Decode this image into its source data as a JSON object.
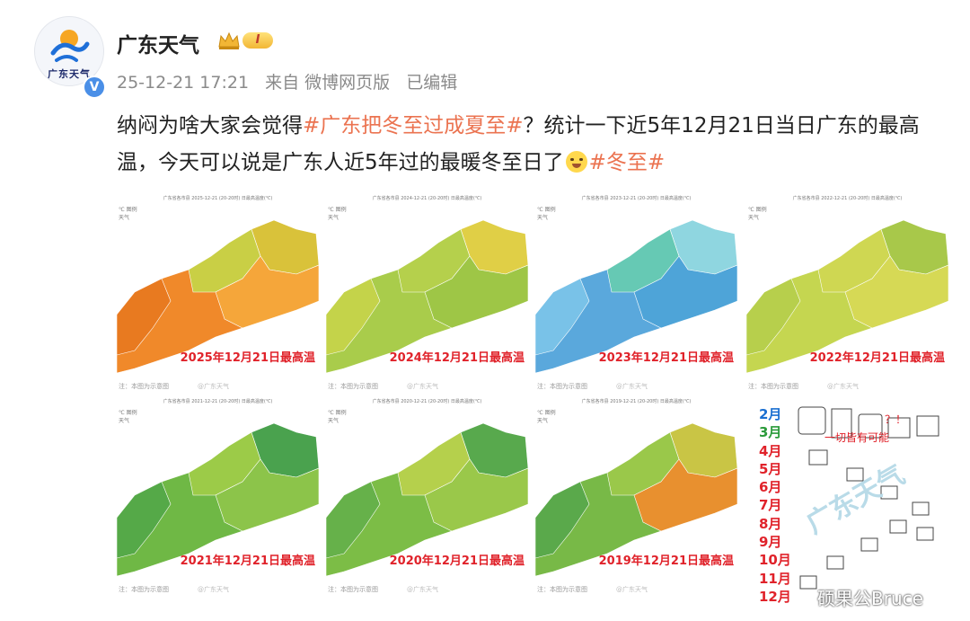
{
  "account": {
    "avatar_text": "广东天气",
    "name": "广东天气",
    "vip_level": "I",
    "verified_mark": "V"
  },
  "post_meta": {
    "timestamp": "25-12-21 17:21",
    "source": "来自 微博网页版",
    "edited": "已编辑"
  },
  "post": {
    "text1": "纳闷为啥大家会觉得",
    "tag1": "#广东把冬至过成夏至#",
    "text2": "？统计一下近5年12月21日当日广东的最高温，今天可以说是广东人近5年过的最暖冬至日了",
    "tag2": "#冬至#"
  },
  "maps": [
    {
      "title": "广东省各市县 2025-12-21 (20-20时) 日最高温度(℃)",
      "caption": "2025年12月21日最高温",
      "colors": [
        "#f0892a",
        "#e87a20",
        "#f5a63a",
        "#d9c23a",
        "#c9cf45"
      ]
    },
    {
      "title": "广东省各市县 2024-12-21 (20-20时) 日最高温度(℃)",
      "caption": "2024年12月21日最高温",
      "colors": [
        "#a9cc4b",
        "#c4d34a",
        "#9ec646",
        "#e0cf46",
        "#b5d04c"
      ]
    },
    {
      "title": "广东省各市县 2023-12-21 (20-20时) 日最高温度(℃)",
      "caption": "2023年12月21日最高温",
      "colors": [
        "#5aa8dc",
        "#79c2e8",
        "#4ea4d8",
        "#8fd6e0",
        "#66c9b4"
      ]
    },
    {
      "title": "广东省各市县 2022-12-21 (20-20时) 日最高温度(℃)",
      "caption": "2022年12月21日最高温",
      "colors": [
        "#c5d650",
        "#b7cf4c",
        "#d6d955",
        "#a8c84a",
        "#cfd752"
      ]
    },
    {
      "title": "广东省各市县 2021-12-21 (20-20时) 日最高温度(℃)",
      "caption": "2021年12月21日最高温",
      "colors": [
        "#6fb845",
        "#55a948",
        "#8cc44a",
        "#4aa24e",
        "#9ccb48"
      ]
    },
    {
      "title": "广东省各市县 2020-12-21 (20-20时) 日最高温度(℃)",
      "caption": "2020年12月21日最高温",
      "colors": [
        "#7cbd46",
        "#66b14a",
        "#9ac84a",
        "#58a94d",
        "#b5d04c"
      ]
    },
    {
      "title": "广东省各市县 2019-12-21 (20-20时) 日最高温度(℃)",
      "caption": "2019年12月21日最高温",
      "colors": [
        "#78b947",
        "#5aa94b",
        "#e8902f",
        "#c9c545",
        "#9ac84a"
      ]
    }
  ],
  "map_common": {
    "note": "注：本图为示意图",
    "watermark": "@广东天气",
    "legend": "℃ 图例\n天气"
  },
  "months_panel": {
    "months": [
      "2月",
      "3月",
      "4月",
      "5月",
      "6月",
      "7月",
      "8月",
      "9月",
      "10月",
      "11月",
      "12月"
    ],
    "month_colors": [
      "#1a6fd1",
      "#2a9a3a",
      "#e0222a",
      "#e0222a",
      "#e0222a",
      "#e0222a",
      "#e0222a",
      "#e0222a",
      "#e0222a",
      "#e0222a",
      "#e0222a"
    ],
    "cartoon_text": "一切皆有可能",
    "question": "？！",
    "watermark": "广东天气"
  },
  "site_watermark": "硕果公Bruce"
}
